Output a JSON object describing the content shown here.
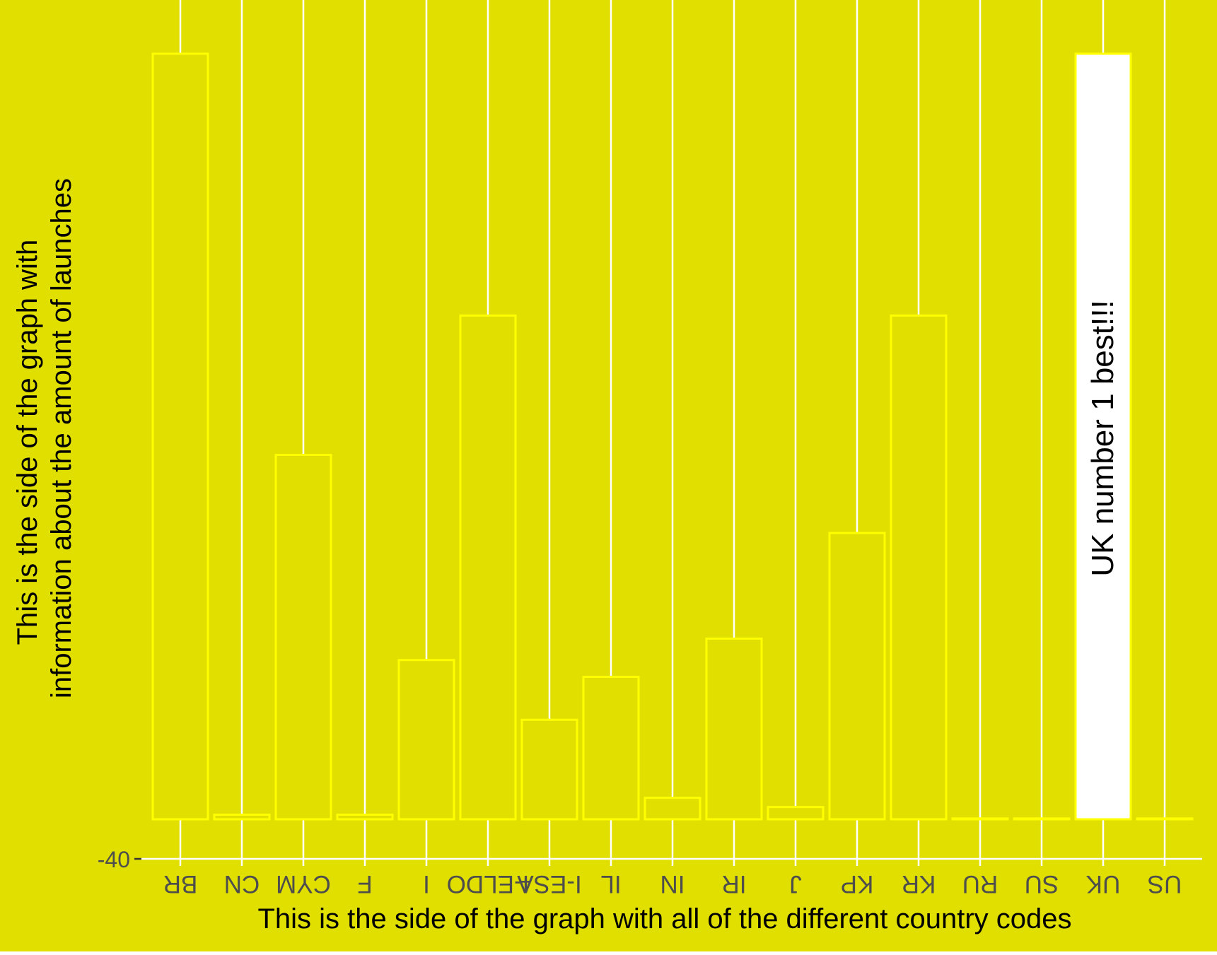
{
  "chart_data": {
    "type": "bar",
    "categories": [
      "BR",
      "CN",
      "CYM",
      "F",
      "I",
      "I-ELDO",
      "I-ESA",
      "IL",
      "IN",
      "IR",
      "J",
      "KP",
      "KR",
      "RU",
      "SU",
      "UK",
      "US"
    ],
    "values": [
      50,
      0.3,
      23.8,
      0.3,
      10.4,
      32.9,
      6.5,
      9.3,
      1.4,
      11.8,
      0.8,
      18.7,
      32.9,
      0.05,
      0.03,
      50,
      0.04
    ],
    "highlight_category": "UK",
    "ylim": [
      -2.56,
      52.3
    ],
    "ytick_values": [
      -40
    ],
    "ytick_labels": [
      "-40"
    ],
    "xlabel": "This is the side of the graph with all of the different country codes",
    "ylabel_lines": [
      "This is the side of the graph with",
      "information about the amount of launches"
    ],
    "annotation": "UK number 1 best!!!",
    "tick_labels_mirrored": true,
    "grid": "vertical major gridlines only",
    "legend": "none"
  },
  "colors": {
    "background": "#e0df00",
    "panel": "#e0df00",
    "bar_outline": "#ffff00",
    "bar_fill": "none",
    "highlight_fill": "#ffffff",
    "gridline": "#ffffff",
    "axis_line": "#ffffff",
    "tick_text": "#4d4d4d",
    "title_text": "#000000"
  }
}
